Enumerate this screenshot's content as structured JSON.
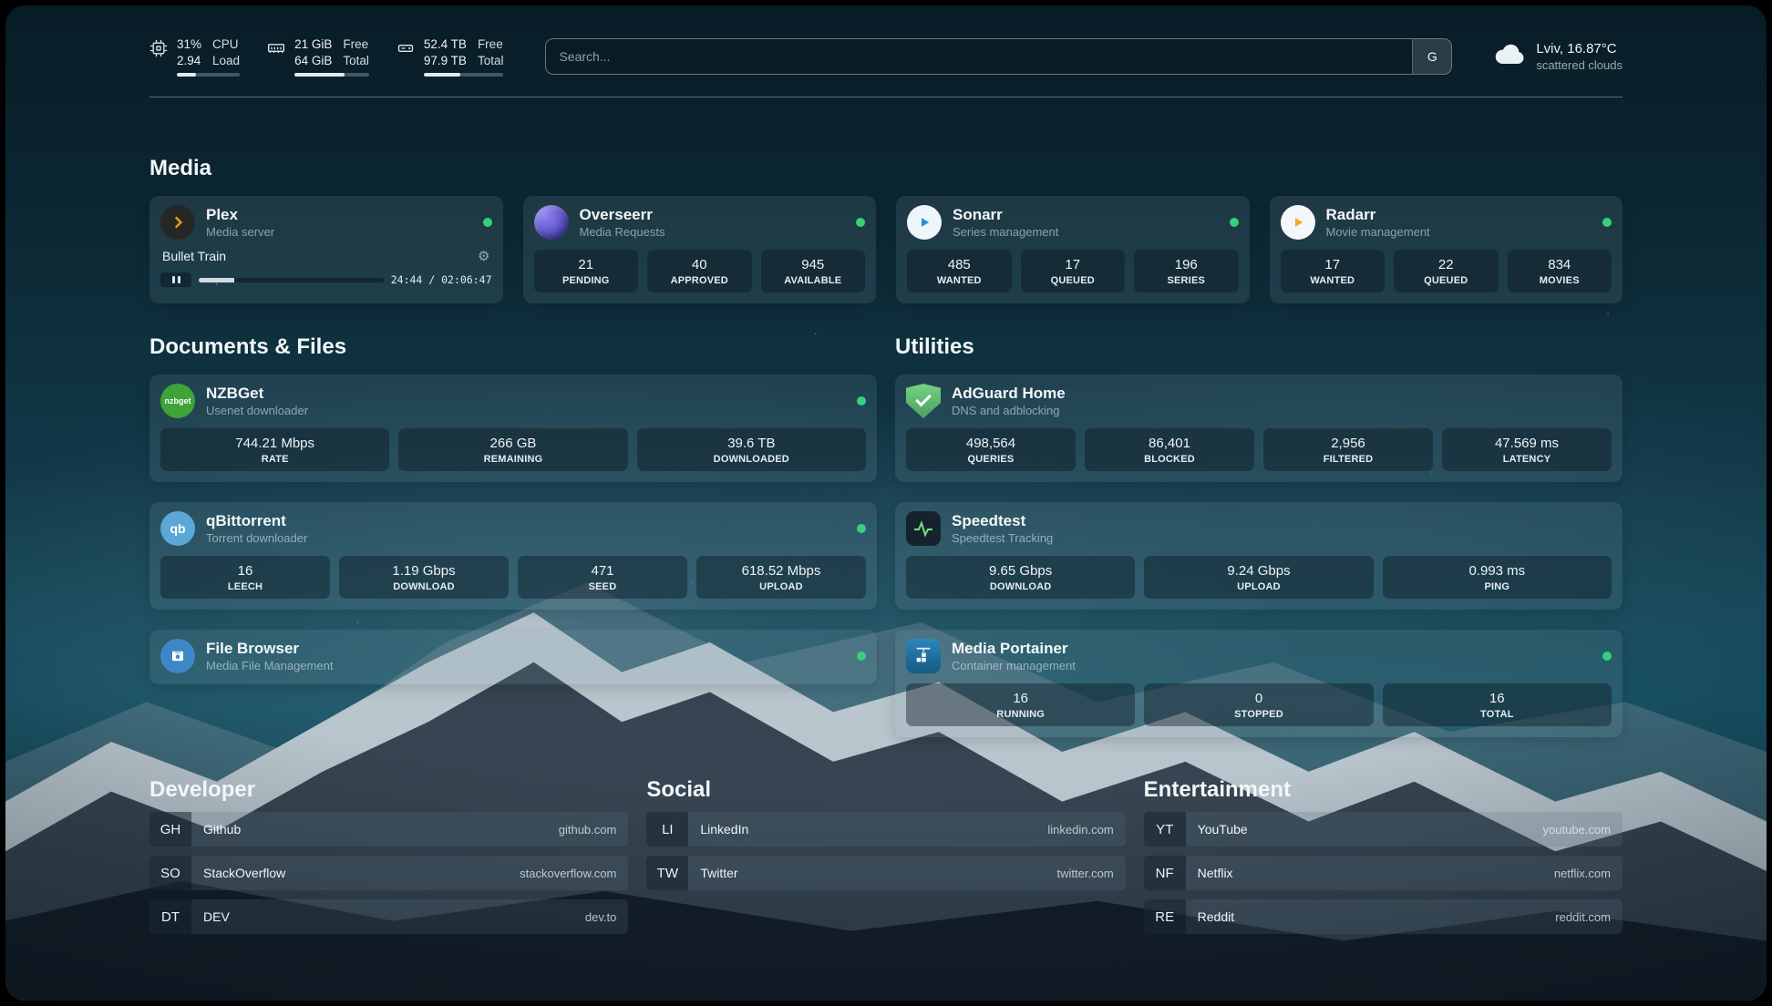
{
  "topbar": {
    "resources": [
      {
        "icon": "cpu-icon",
        "val1": "31%",
        "val2": "2.94",
        "lab1": "CPU",
        "lab2": "Load",
        "progress": 31
      },
      {
        "icon": "memory-icon",
        "val1": "21 GiB",
        "val2": "64 GiB",
        "lab1": "Free",
        "lab2": "Total",
        "progress": 67
      },
      {
        "icon": "disk-icon",
        "val1": "52.4 TB",
        "val2": "97.9 TB",
        "lab1": "Free",
        "lab2": "Total",
        "progress": 46
      }
    ],
    "search": {
      "placeholder": "Search...",
      "provider_label": "G"
    },
    "weather": {
      "location": "Lviv, 16.87°C",
      "condition": "scattered clouds"
    }
  },
  "icons": {
    "gear": "⚙"
  },
  "sections": {
    "media": {
      "title": "Media",
      "plex": {
        "name": "Plex",
        "desc": "Media server",
        "now_playing": {
          "title": "Bullet Train",
          "time": "24:44 / 02:06:47",
          "progress": 19
        }
      },
      "overseerr": {
        "name": "Overseerr",
        "desc": "Media Requests",
        "stats": [
          {
            "v": "21",
            "l": "PENDING"
          },
          {
            "v": "40",
            "l": "APPROVED"
          },
          {
            "v": "945",
            "l": "AVAILABLE"
          }
        ]
      },
      "sonarr": {
        "name": "Sonarr",
        "desc": "Series management",
        "stats": [
          {
            "v": "485",
            "l": "WANTED"
          },
          {
            "v": "17",
            "l": "QUEUED"
          },
          {
            "v": "196",
            "l": "SERIES"
          }
        ]
      },
      "radarr": {
        "name": "Radarr",
        "desc": "Movie management",
        "stats": [
          {
            "v": "17",
            "l": "WANTED"
          },
          {
            "v": "22",
            "l": "QUEUED"
          },
          {
            "v": "834",
            "l": "MOVIES"
          }
        ]
      }
    },
    "documents": {
      "title": "Documents & Files",
      "nzbget": {
        "name": "NZBGet",
        "desc": "Usenet downloader",
        "icon_text": "nzbget",
        "stats": [
          {
            "v": "744.21 Mbps",
            "l": "RATE"
          },
          {
            "v": "266 GB",
            "l": "REMAINING"
          },
          {
            "v": "39.6 TB",
            "l": "DOWNLOADED"
          }
        ]
      },
      "qbittorrent": {
        "name": "qBittorrent",
        "desc": "Torrent downloader",
        "icon_text": "qb",
        "stats": [
          {
            "v": "16",
            "l": "LEECH"
          },
          {
            "v": "1.19 Gbps",
            "l": "DOWNLOAD"
          },
          {
            "v": "471",
            "l": "SEED"
          },
          {
            "v": "618.52 Mbps",
            "l": "UPLOAD"
          }
        ]
      },
      "filebrowser": {
        "name": "File Browser",
        "desc": "Media File Management"
      }
    },
    "utilities": {
      "title": "Utilities",
      "adguard": {
        "name": "AdGuard Home",
        "desc": "DNS and adblocking",
        "stats": [
          {
            "v": "498,564",
            "l": "QUERIES"
          },
          {
            "v": "86,401",
            "l": "BLOCKED"
          },
          {
            "v": "2,956",
            "l": "FILTERED"
          },
          {
            "v": "47.569 ms",
            "l": "LATENCY"
          }
        ]
      },
      "speedtest": {
        "name": "Speedtest",
        "desc": "Speedtest Tracking",
        "stats": [
          {
            "v": "9.65 Gbps",
            "l": "DOWNLOAD"
          },
          {
            "v": "9.24 Gbps",
            "l": "UPLOAD"
          },
          {
            "v": "0.993 ms",
            "l": "PING"
          }
        ]
      },
      "portainer": {
        "name": "Media Portainer",
        "desc": "Container management",
        "stats": [
          {
            "v": "16",
            "l": "RUNNING"
          },
          {
            "v": "0",
            "l": "STOPPED"
          },
          {
            "v": "16",
            "l": "TOTAL"
          }
        ]
      }
    },
    "developer": {
      "title": "Developer",
      "links": [
        {
          "abbr": "GH",
          "name": "Github",
          "url": "github.com"
        },
        {
          "abbr": "SO",
          "name": "StackOverflow",
          "url": "stackoverflow.com"
        },
        {
          "abbr": "DT",
          "name": "DEV",
          "url": "dev.to"
        }
      ]
    },
    "social": {
      "title": "Social",
      "links": [
        {
          "abbr": "LI",
          "name": "LinkedIn",
          "url": "linkedin.com"
        },
        {
          "abbr": "TW",
          "name": "Twitter",
          "url": "twitter.com"
        }
      ]
    },
    "entertainment": {
      "title": "Entertainment",
      "links": [
        {
          "abbr": "YT",
          "name": "YouTube",
          "url": "youtube.com"
        },
        {
          "abbr": "NF",
          "name": "Netflix",
          "url": "netflix.com"
        },
        {
          "abbr": "RE",
          "name": "Reddit",
          "url": "reddit.com"
        }
      ]
    }
  },
  "colors": {
    "status_green": "#35d07c",
    "plex_accent": "#e5a00d"
  }
}
